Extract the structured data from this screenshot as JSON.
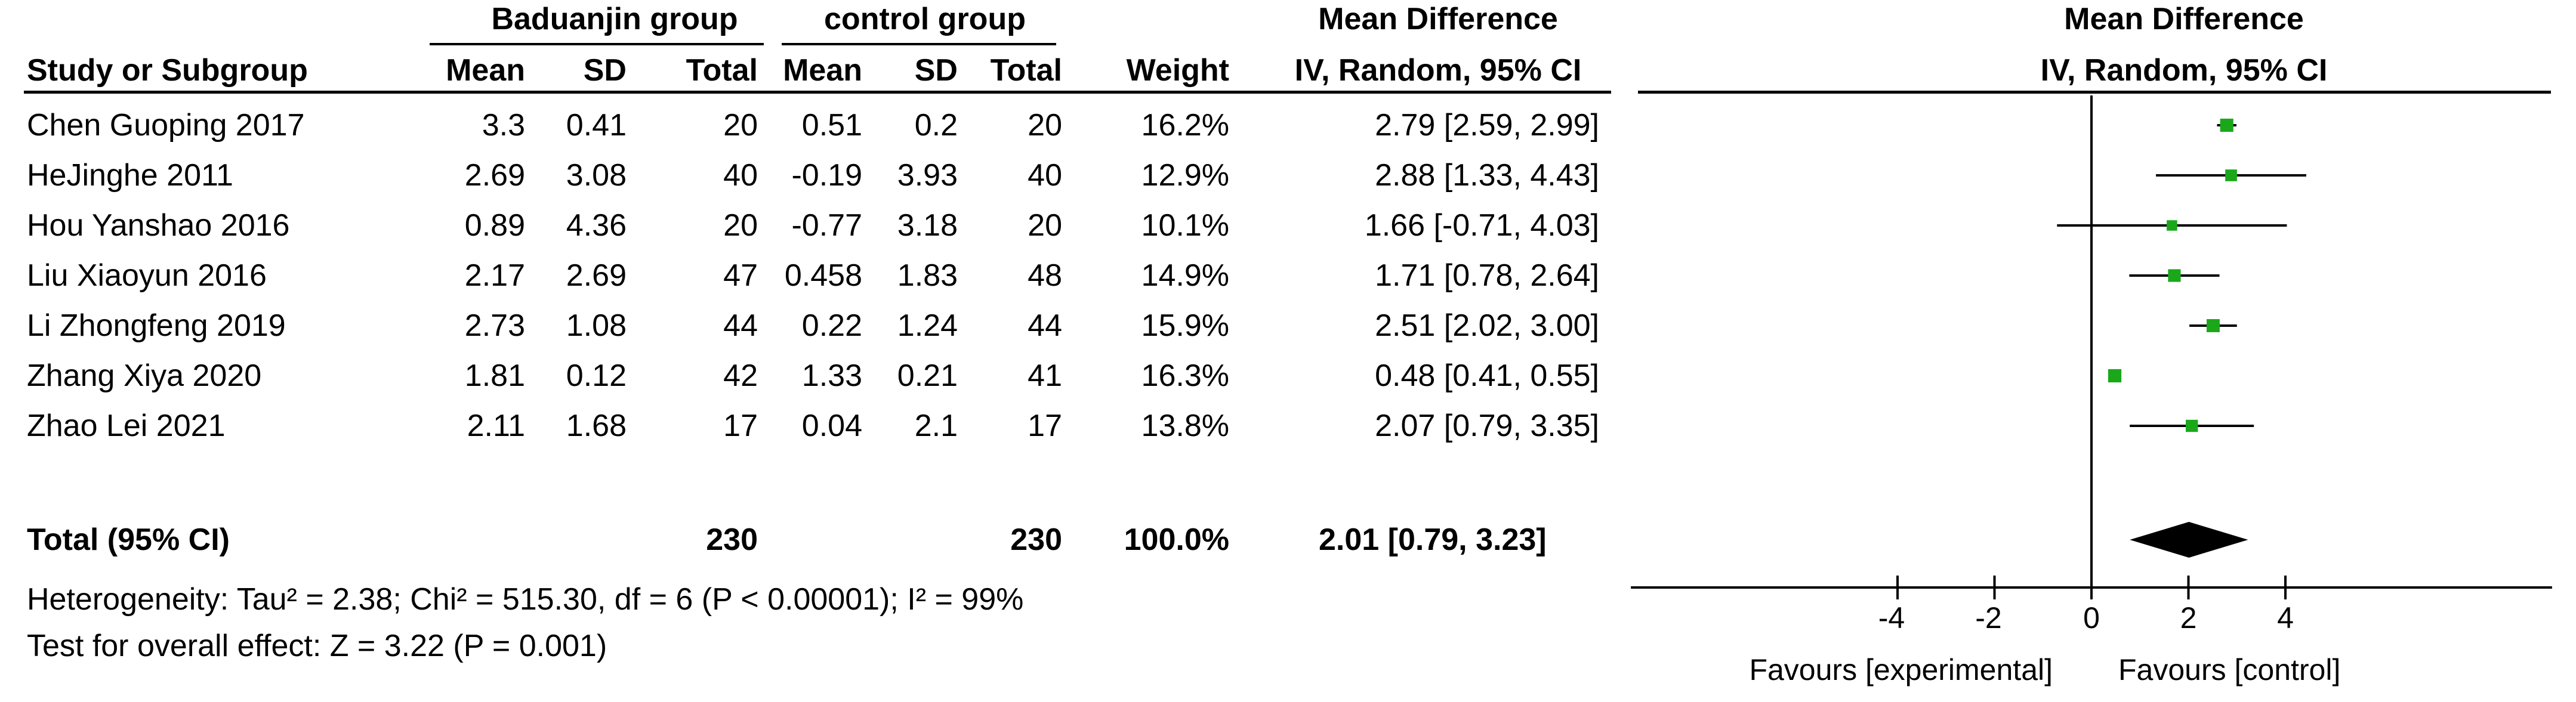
{
  "header": {
    "group1": "Baduanjin group",
    "group2": "control group",
    "effect_title": "Mean Difference",
    "plot_title": "Mean Difference",
    "cols": {
      "study": "Study or Subgroup",
      "mean1": "Mean",
      "sd1": "SD",
      "total1": "Total",
      "mean2": "Mean",
      "sd2": "SD",
      "total2": "Total",
      "weight": "Weight",
      "ci": "IV, Random, 95% CI"
    },
    "plot_subtitle": "IV, Random, 95% CI"
  },
  "totals": {
    "label": "Total (95% CI)",
    "total1": "230",
    "total2": "230",
    "weight": "100.0%",
    "ci": "2.01 [0.79, 3.23]"
  },
  "footer": {
    "heterogeneity": "Heterogeneity: Tau² = 2.38; Chi² = 515.30, df = 6 (P < 0.00001); I² = 99%",
    "overall": "Test for overall effect: Z = 3.22 (P = 0.001)"
  },
  "chart_data": {
    "type": "forest",
    "x_ticks": [
      "-4",
      "-2",
      "0",
      "2",
      "4"
    ],
    "x_tick_values": [
      -4,
      -2,
      0,
      2,
      4
    ],
    "xlim": [
      -9.5,
      9.5
    ],
    "favours_left": "Favours [experimental]",
    "favours_right": "Favours [control]",
    "marker_color": "#1aa81a",
    "studies": [
      {
        "name": "Chen Guoping 2017",
        "mean1": "3.3",
        "sd1": "0.41",
        "total1": "20",
        "mean2": "0.51",
        "sd2": "0.2",
        "total2": "20",
        "weight": "16.2%",
        "ci": "2.79 [2.59, 2.99]",
        "md": 2.79,
        "lo": 2.59,
        "hi": 2.99
      },
      {
        "name": "HeJinghe 2011",
        "mean1": "2.69",
        "sd1": "3.08",
        "total1": "40",
        "mean2": "-0.19",
        "sd2": "3.93",
        "total2": "40",
        "weight": "12.9%",
        "ci": "2.88 [1.33, 4.43]",
        "md": 2.88,
        "lo": 1.33,
        "hi": 4.43
      },
      {
        "name": "Hou Yanshao 2016",
        "mean1": "0.89",
        "sd1": "4.36",
        "total1": "20",
        "mean2": "-0.77",
        "sd2": "3.18",
        "total2": "20",
        "weight": "10.1%",
        "ci": "1.66 [-0.71, 4.03]",
        "md": 1.66,
        "lo": -0.71,
        "hi": 4.03
      },
      {
        "name": "Liu Xiaoyun 2016",
        "mean1": "2.17",
        "sd1": "2.69",
        "total1": "47",
        "mean2": "0.458",
        "sd2": "1.83",
        "total2": "48",
        "weight": "14.9%",
        "ci": "1.71 [0.78, 2.64]",
        "md": 1.71,
        "lo": 0.78,
        "hi": 2.64
      },
      {
        "name": "Li Zhongfeng 2019",
        "mean1": "2.73",
        "sd1": "1.08",
        "total1": "44",
        "mean2": "0.22",
        "sd2": "1.24",
        "total2": "44",
        "weight": "15.9%",
        "ci": "2.51 [2.02, 3.00]",
        "md": 2.51,
        "lo": 2.02,
        "hi": 3.0
      },
      {
        "name": "Zhang Xiya 2020",
        "mean1": "1.81",
        "sd1": "0.12",
        "total1": "42",
        "mean2": "1.33",
        "sd2": "0.21",
        "total2": "41",
        "weight": "16.3%",
        "ci": "0.48 [0.41, 0.55]",
        "md": 0.48,
        "lo": 0.41,
        "hi": 0.55
      },
      {
        "name": "Zhao Lei 2021",
        "mean1": "2.11",
        "sd1": "1.68",
        "total1": "17",
        "mean2": "0.04",
        "sd2": "2.1",
        "total2": "17",
        "weight": "13.8%",
        "ci": "2.07 [0.79, 3.35]",
        "md": 2.07,
        "lo": 0.79,
        "hi": 3.35
      }
    ],
    "pooled": {
      "md": 2.01,
      "lo": 0.79,
      "hi": 3.23
    }
  }
}
